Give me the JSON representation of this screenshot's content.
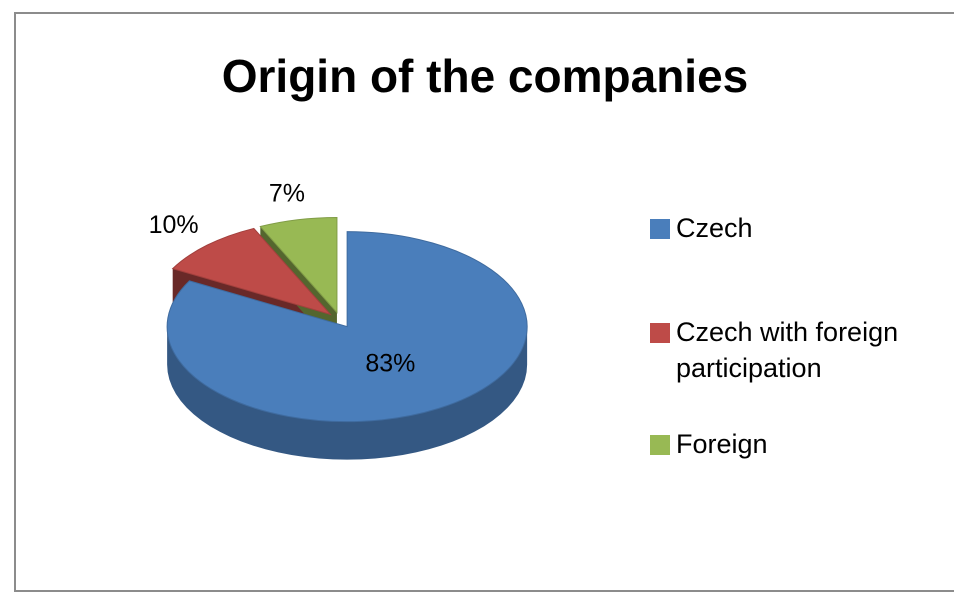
{
  "chart_data": {
    "type": "pie",
    "title": "Origin of the companies",
    "categories": [
      "Czech",
      "Czech with foreign participation",
      "Foreign"
    ],
    "values": [
      83,
      10,
      7
    ],
    "value_labels": [
      "83%",
      "10%",
      "7%"
    ],
    "colors": [
      "#4a7ebb",
      "#be4b48",
      "#98b954"
    ],
    "legend": "right"
  }
}
